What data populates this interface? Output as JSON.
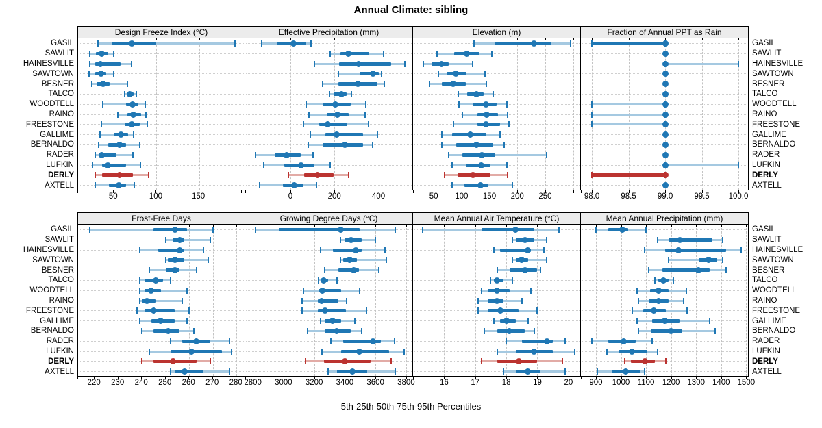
{
  "title": "Annual Climate: sibling",
  "caption": "5th-25th-50th-75th-95th Percentiles",
  "stations": [
    "GASIL",
    "SAWLIT",
    "HAINESVILLE",
    "SAWTOWN",
    "BESNER",
    "TALCO",
    "WOODTELL",
    "RAINO",
    "FREESTONE",
    "GALLIME",
    "BERNALDO",
    "RADER",
    "LUFKIN",
    "DERLY",
    "AXTELL"
  ],
  "highlight_station": "DERLY",
  "colors": {
    "series": "#1f77b4",
    "series_light": "#a5c9e1",
    "highlight": "#bb3330",
    "highlight_light": "#e2aba6",
    "grid_vertical": "#c3c3c3",
    "grid_horizontal": "#cfcfcf",
    "strip_background": "#ececec",
    "panel_border": "#000000"
  },
  "chart_data": {
    "type": "scatter",
    "variant": "percentile-dotplot",
    "percentiles": [
      5,
      25,
      50,
      75,
      95
    ],
    "legend_position": "none",
    "grid": true,
    "panels": [
      {
        "row": 0,
        "title": "Design Freeze Index (°C)",
        "range": [
          8,
          205
        ],
        "ticks": [
          50,
          100,
          150,
          200
        ],
        "tick_labels": [
          "50",
          "100",
          "150",
          ""
        ],
        "values": [
          [
            31,
            47,
            71,
            100,
            192
          ],
          [
            22,
            29,
            36,
            43,
            50
          ],
          [
            22,
            28,
            34,
            58,
            71
          ],
          [
            21,
            28,
            35,
            41,
            50
          ],
          [
            24,
            30,
            37,
            45,
            66
          ],
          [
            63,
            66,
            69,
            73,
            76
          ],
          [
            37,
            64,
            72,
            79,
            87
          ],
          [
            55,
            66,
            73,
            82,
            88
          ],
          [
            35,
            63,
            71,
            80,
            89
          ],
          [
            34,
            50,
            58,
            67,
            73
          ],
          [
            32,
            43,
            57,
            64,
            80
          ],
          [
            28,
            32,
            36,
            53,
            72
          ],
          [
            25,
            36,
            43,
            64,
            81
          ],
          [
            28,
            36,
            57,
            72,
            91
          ],
          [
            28,
            44,
            56,
            64,
            74
          ]
        ]
      },
      {
        "row": 0,
        "title": "Effective Precipitation (mm)",
        "range": [
          -205,
          557
        ],
        "ticks": [
          -200,
          0,
          200,
          400
        ],
        "tick_labels": [
          "",
          "0",
          "200",
          "400"
        ],
        "values": [
          [
            -129,
            -63,
            13,
            72,
            95
          ],
          [
            180,
            227,
            264,
            359,
            422
          ],
          [
            110,
            221,
            311,
            457,
            520
          ],
          [
            217,
            315,
            375,
            400,
            413
          ],
          [
            145,
            217,
            308,
            394,
            425
          ],
          [
            176,
            195,
            233,
            255,
            277
          ],
          [
            72,
            148,
            205,
            274,
            343
          ],
          [
            85,
            164,
            214,
            264,
            340
          ],
          [
            60,
            132,
            170,
            258,
            356
          ],
          [
            91,
            158,
            211,
            331,
            394
          ],
          [
            82,
            148,
            246,
            331,
            375
          ],
          [
            -158,
            -72,
            -16,
            47,
            104
          ],
          [
            -120,
            -28,
            47,
            110,
            180
          ],
          [
            -9,
            63,
            123,
            195,
            264
          ],
          [
            -139,
            -35,
            16,
            60,
            120
          ]
        ]
      },
      {
        "row": 0,
        "title": "Elevation (m)",
        "range": [
          13,
          314
        ],
        "ticks": [
          50,
          100,
          150,
          200,
          250,
          300
        ],
        "tick_labels": [
          "50",
          "100",
          "150",
          "200",
          "250",
          ""
        ],
        "values": [
          [
            122,
            160,
            230,
            261,
            296
          ],
          [
            56,
            87,
            109,
            132,
            154
          ],
          [
            32,
            46,
            64,
            77,
            120
          ],
          [
            58,
            73,
            90,
            109,
            142
          ],
          [
            42,
            64,
            85,
            107,
            145
          ],
          [
            94,
            110,
            127,
            140,
            157
          ],
          [
            95,
            120,
            144,
            163,
            181
          ],
          [
            102,
            128,
            145,
            165,
            183
          ],
          [
            85,
            128,
            144,
            169,
            185
          ],
          [
            64,
            83,
            116,
            144,
            169
          ],
          [
            64,
            91,
            127,
            157,
            177
          ],
          [
            77,
            101,
            137,
            161,
            253
          ],
          [
            83,
            107,
            135,
            152,
            181
          ],
          [
            70,
            93,
            121,
            152,
            183
          ],
          [
            83,
            105,
            134,
            148,
            191
          ]
        ]
      },
      {
        "row": 0,
        "title": "Fraction of Annual PPT as Rain",
        "range": [
          97.85,
          100.14
        ],
        "ticks": [
          98.0,
          98.5,
          99.0,
          99.5,
          100.0
        ],
        "tick_labels": [
          "98.0",
          "98.5",
          "99.0",
          "99.5",
          "100.0"
        ],
        "values": [
          [
            98,
            98,
            99,
            99,
            99
          ],
          [
            99,
            99,
            99,
            99,
            99
          ],
          [
            99,
            99,
            99,
            99,
            100
          ],
          [
            99,
            99,
            99,
            99,
            99
          ],
          [
            99,
            99,
            99,
            99,
            99
          ],
          [
            99,
            99,
            99,
            99,
            99
          ],
          [
            98,
            99,
            99,
            99,
            99
          ],
          [
            98,
            99,
            99,
            99,
            99
          ],
          [
            98,
            99,
            99,
            99,
            99
          ],
          [
            99,
            99,
            99,
            99,
            99
          ],
          [
            99,
            99,
            99,
            99,
            99
          ],
          [
            99,
            99,
            99,
            99,
            99
          ],
          [
            99,
            99,
            99,
            99,
            100
          ],
          [
            98,
            98,
            99,
            99,
            99
          ],
          [
            99,
            99,
            99,
            99,
            99
          ]
        ]
      },
      {
        "row": 1,
        "title": "Frost-Free Days",
        "range": [
          213,
          284
        ],
        "ticks": [
          220,
          230,
          240,
          250,
          260,
          270,
          280
        ],
        "tick_labels": [
          "220",
          "230",
          "240",
          "250",
          "260",
          "270",
          "280"
        ],
        "values": [
          [
            218,
            245,
            254,
            259,
            270
          ],
          [
            250,
            253,
            256,
            258,
            269
          ],
          [
            239,
            247,
            256,
            258,
            266
          ],
          [
            250,
            251,
            254,
            258,
            268
          ],
          [
            243,
            250,
            254,
            256,
            263
          ],
          [
            239,
            241,
            246,
            249,
            252
          ],
          [
            239,
            241,
            244,
            248,
            259
          ],
          [
            239,
            240,
            242,
            246,
            257
          ],
          [
            238,
            241,
            245,
            254,
            260
          ],
          [
            239,
            244,
            248,
            254,
            259
          ],
          [
            240,
            245,
            251,
            256,
            262
          ],
          [
            252,
            257,
            263,
            269,
            277
          ],
          [
            243,
            252,
            261,
            274,
            278
          ],
          [
            240,
            245,
            253,
            263,
            269
          ],
          [
            252,
            254,
            258,
            266,
            277
          ]
        ]
      },
      {
        "row": 1,
        "title": "Growing Degree Days (°C)",
        "range": [
          2750,
          3845
        ],
        "ticks": [
          2800,
          3000,
          3200,
          3400,
          3600,
          3800
        ],
        "tick_labels": [
          "2800",
          "3000",
          "3200",
          "3400",
          "3600",
          "3800"
        ],
        "values": [
          [
            2815,
            2970,
            3375,
            3495,
            3730
          ],
          [
            3370,
            3400,
            3440,
            3510,
            3600
          ],
          [
            3240,
            3320,
            3470,
            3510,
            3660
          ],
          [
            3370,
            3390,
            3430,
            3480,
            3670
          ],
          [
            3270,
            3360,
            3460,
            3490,
            3620
          ],
          [
            3230,
            3240,
            3260,
            3290,
            3350
          ],
          [
            3130,
            3230,
            3255,
            3375,
            3495
          ],
          [
            3120,
            3225,
            3250,
            3360,
            3410
          ],
          [
            3120,
            3225,
            3270,
            3405,
            3540
          ],
          [
            3240,
            3270,
            3320,
            3375,
            3465
          ],
          [
            3155,
            3270,
            3345,
            3440,
            3510
          ],
          [
            3310,
            3390,
            3585,
            3635,
            3725
          ],
          [
            3250,
            3375,
            3495,
            3690,
            3785
          ],
          [
            3145,
            3265,
            3400,
            3570,
            3700
          ],
          [
            3290,
            3350,
            3450,
            3545,
            3730
          ]
        ]
      },
      {
        "row": 1,
        "title": "Mean Annual Air Temperature (°C)",
        "range": [
          15.0,
          20.4
        ],
        "ticks": [
          16,
          17,
          18,
          19,
          20
        ],
        "tick_labels": [
          "16",
          "17",
          "18",
          "19",
          "20"
        ],
        "values": [
          [
            15.3,
            17.2,
            18.3,
            18.9,
            19.7
          ],
          [
            18.2,
            18.3,
            18.6,
            18.9,
            19.3
          ],
          [
            17.6,
            17.8,
            18.7,
            18.8,
            19.2
          ],
          [
            18.2,
            18.3,
            18.5,
            18.7,
            19.3
          ],
          [
            17.7,
            18.1,
            18.6,
            19.0,
            19.1
          ],
          [
            17.5,
            17.6,
            17.7,
            17.9,
            18.2
          ],
          [
            17.2,
            17.4,
            17.7,
            18.1,
            18.8
          ],
          [
            17.1,
            17.4,
            17.7,
            17.9,
            18.5
          ],
          [
            17.1,
            17.4,
            17.8,
            18.4,
            19.0
          ],
          [
            17.6,
            17.8,
            18.0,
            18.3,
            18.7
          ],
          [
            17.3,
            17.7,
            18.1,
            18.6,
            18.9
          ],
          [
            18.0,
            18.5,
            19.3,
            19.5,
            19.9
          ],
          [
            17.7,
            18.3,
            18.9,
            19.5,
            20.2
          ],
          [
            17.2,
            17.7,
            18.4,
            19.0,
            19.8
          ],
          [
            17.9,
            18.3,
            18.7,
            19.1,
            19.9
          ]
        ]
      },
      {
        "row": 1,
        "title": "Mean Annual Precipitation (mm)",
        "range": [
          840,
          1510
        ],
        "ticks": [
          900,
          1000,
          1100,
          1200,
          1300,
          1400,
          1500
        ],
        "tick_labels": [
          "900",
          "1000",
          "1100",
          "1200",
          "1300",
          "1400",
          "1500"
        ],
        "values": [
          [
            900,
            950,
            1005,
            1030,
            1100
          ],
          [
            1145,
            1190,
            1235,
            1365,
            1405
          ],
          [
            1095,
            1175,
            1230,
            1420,
            1480
          ],
          [
            1190,
            1310,
            1350,
            1385,
            1405
          ],
          [
            1110,
            1165,
            1310,
            1355,
            1420
          ],
          [
            1135,
            1150,
            1170,
            1190,
            1210
          ],
          [
            1065,
            1115,
            1150,
            1190,
            1260
          ],
          [
            1070,
            1110,
            1150,
            1190,
            1250
          ],
          [
            1045,
            1090,
            1130,
            1180,
            1265
          ],
          [
            1065,
            1125,
            1175,
            1235,
            1355
          ],
          [
            1070,
            1120,
            1200,
            1245,
            1375
          ],
          [
            885,
            950,
            1010,
            1060,
            1125
          ],
          [
            945,
            990,
            1045,
            1105,
            1145
          ],
          [
            1015,
            1040,
            1095,
            1135,
            1180
          ],
          [
            905,
            965,
            1020,
            1075,
            1095
          ]
        ]
      }
    ]
  }
}
